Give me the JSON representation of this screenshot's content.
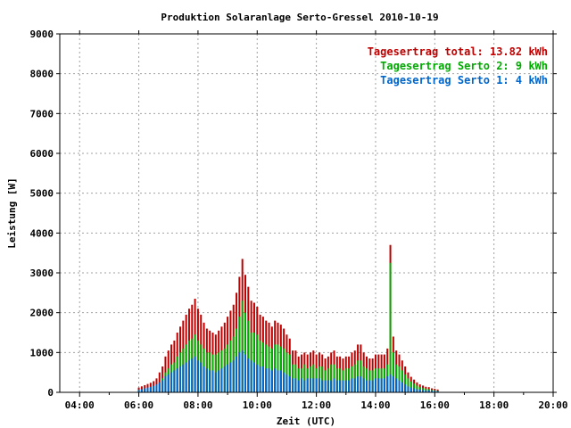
{
  "chart_data": {
    "type": "bar",
    "stacked": true,
    "title": "Produktion Solaranlage Serto-Gressel 2010-10-19",
    "xlabel": "Zeit (UTC)",
    "ylabel": "Leistung [W]",
    "x_unit": "hours UTC",
    "xlim": [
      3.33,
      20
    ],
    "ylim": [
      0,
      9000
    ],
    "x_ticks": [
      {
        "value": 4,
        "label": "04:00"
      },
      {
        "value": 6,
        "label": "06:00"
      },
      {
        "value": 8,
        "label": "08:00"
      },
      {
        "value": 10,
        "label": "10:00"
      },
      {
        "value": 12,
        "label": "12:00"
      },
      {
        "value": 14,
        "label": "14:00"
      },
      {
        "value": 16,
        "label": "16:00"
      },
      {
        "value": 18,
        "label": "18:00"
      },
      {
        "value": 20,
        "label": "20:00"
      }
    ],
    "y_ticks": [
      {
        "value": 0,
        "label": "0"
      },
      {
        "value": 1000,
        "label": "1000"
      },
      {
        "value": 2000,
        "label": "2000"
      },
      {
        "value": 3000,
        "label": "3000"
      },
      {
        "value": 4000,
        "label": "4000"
      },
      {
        "value": 5000,
        "label": "5000"
      },
      {
        "value": 6000,
        "label": "6000"
      },
      {
        "value": 7000,
        "label": "7000"
      },
      {
        "value": 8000,
        "label": "8000"
      },
      {
        "value": 9000,
        "label": "9000"
      }
    ],
    "grid": true,
    "legend_position": "top-right",
    "legend": [
      {
        "text": "Tagesertrag total: 13.82 kWh",
        "color": "#c00000"
      },
      {
        "text": "Tagesertrag Serto 2: 9 kWh",
        "color": "#00aa00"
      },
      {
        "text": "Tagesertrag Serto 1: 4 kWh",
        "color": "#0066cc"
      }
    ],
    "series_colors": {
      "total": "#c00000",
      "serto2": "#00aa00",
      "serto1": "#0066cc"
    },
    "x": [
      6.0,
      6.1,
      6.2,
      6.3,
      6.4,
      6.5,
      6.6,
      6.7,
      6.8,
      6.9,
      7.0,
      7.1,
      7.2,
      7.3,
      7.4,
      7.5,
      7.6,
      7.7,
      7.8,
      7.9,
      8.0,
      8.1,
      8.2,
      8.3,
      8.4,
      8.5,
      8.6,
      8.7,
      8.8,
      8.9,
      9.0,
      9.1,
      9.2,
      9.3,
      9.4,
      9.5,
      9.6,
      9.7,
      9.8,
      9.9,
      10.0,
      10.1,
      10.2,
      10.3,
      10.4,
      10.5,
      10.6,
      10.7,
      10.8,
      10.9,
      11.0,
      11.1,
      11.2,
      11.3,
      11.4,
      11.5,
      11.6,
      11.7,
      11.8,
      11.9,
      12.0,
      12.1,
      12.2,
      12.3,
      12.4,
      12.5,
      12.6,
      12.7,
      12.8,
      12.9,
      13.0,
      13.1,
      13.2,
      13.3,
      13.4,
      13.5,
      13.6,
      13.7,
      13.8,
      13.9,
      14.0,
      14.1,
      14.2,
      14.3,
      14.4,
      14.5,
      14.6,
      14.7,
      14.8,
      14.9,
      15.0,
      15.1,
      15.2,
      15.3,
      15.4,
      15.5,
      15.6,
      15.7,
      15.8,
      15.9,
      16.0,
      16.1
    ],
    "series": [
      {
        "name": "Serto 1",
        "values": [
          60,
          80,
          100,
          120,
          140,
          160,
          200,
          250,
          300,
          400,
          450,
          500,
          550,
          600,
          650,
          700,
          750,
          800,
          850,
          900,
          800,
          750,
          650,
          600,
          550,
          550,
          500,
          550,
          600,
          650,
          700,
          750,
          800,
          900,
          1000,
          1050,
          950,
          850,
          800,
          750,
          700,
          650,
          650,
          600,
          600,
          550,
          600,
          550,
          550,
          500,
          450,
          400,
          350,
          350,
          300,
          350,
          300,
          350,
          350,
          350,
          350,
          350,
          300,
          300,
          300,
          300,
          350,
          300,
          300,
          300,
          300,
          300,
          350,
          350,
          400,
          400,
          350,
          300,
          300,
          300,
          350,
          350,
          350,
          350,
          400,
          450,
          400,
          350,
          300,
          250,
          200,
          150,
          120,
          100,
          80,
          70,
          60,
          50,
          50,
          40,
          40,
          30
        ]
      },
      {
        "name": "Serto 2",
        "values": [
          60,
          70,
          80,
          90,
          100,
          120,
          150,
          250,
          350,
          500,
          600,
          700,
          750,
          900,
          1000,
          1100,
          1200,
          1300,
          1350,
          1450,
          1300,
          1200,
          1100,
          1000,
          1000,
          950,
          950,
          1000,
          1050,
          1100,
          1200,
          1300,
          1400,
          1600,
          1900,
          2300,
          2000,
          1800,
          1500,
          1500,
          1450,
          1300,
          1250,
          1200,
          1150,
          1100,
          1200,
          1200,
          1150,
          1100,
          1000,
          950,
          700,
          700,
          600,
          600,
          700,
          600,
          650,
          700,
          600,
          650,
          650,
          550,
          600,
          700,
          700,
          600,
          600,
          550,
          600,
          600,
          650,
          700,
          800,
          800,
          650,
          600,
          550,
          550,
          600,
          600,
          600,
          600,
          700,
          3250,
          1000,
          700,
          650,
          550,
          450,
          350,
          270,
          220,
          170,
          130,
          110,
          90,
          80,
          60,
          50,
          40
        ]
      },
      {
        "name": "total",
        "values": [
          120,
          150,
          180,
          210,
          240,
          280,
          350,
          500,
          650,
          900,
          1050,
          1200,
          1300,
          1500,
          1650,
          1800,
          1950,
          2100,
          2200,
          2350,
          2100,
          1950,
          1750,
          1600,
          1550,
          1500,
          1450,
          1550,
          1650,
          1750,
          1900,
          2050,
          2200,
          2500,
          2900,
          3350,
          2950,
          2650,
          2300,
          2250,
          2150,
          1950,
          1900,
          1800,
          1750,
          1650,
          1800,
          1750,
          1700,
          1600,
          1450,
          1350,
          1050,
          1050,
          900,
          950,
          1000,
          950,
          1000,
          1050,
          950,
          1000,
          950,
          850,
          900,
          1000,
          1050,
          900,
          900,
          850,
          900,
          900,
          1000,
          1050,
          1200,
          1200,
          1000,
          900,
          850,
          850,
          950,
          950,
          950,
          950,
          1100,
          3700,
          1400,
          1050,
          950,
          800,
          650,
          500,
          390,
          320,
          250,
          200,
          170,
          140,
          130,
          100,
          90,
          70
        ]
      }
    ]
  }
}
